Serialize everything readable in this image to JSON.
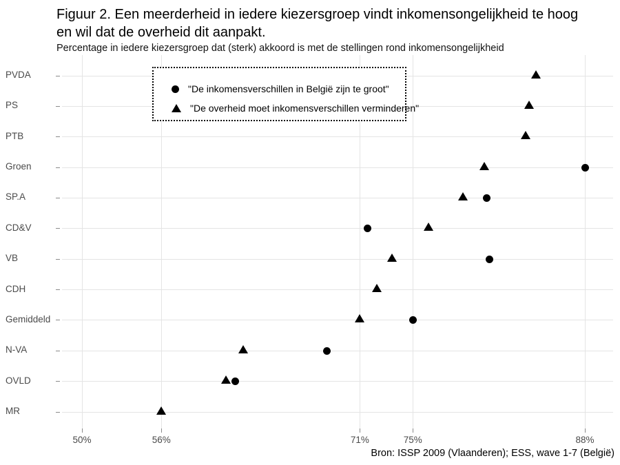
{
  "header": {
    "title_lines": [
      "Figuur 2. Een meerderheid in iedere kiezersgroep vindt inkomensongelijkheid te hoog",
      "en wil dat de overheid dit aanpakt."
    ],
    "subtitle": "Percentage in iedere kiezersgroep dat (sterk) akkoord is met de stellingen rond inkomensongelijkheid"
  },
  "legend": {
    "items": [
      {
        "marker": "circle",
        "label": "\"De inkomensverschillen in België zijn te groot\""
      },
      {
        "marker": "triangle",
        "label": "\"De overheid moet inkomensverschillen verminderen\""
      }
    ]
  },
  "footer": {
    "source": "Bron: ISSP 2009 (Vlaanderen); ESS, wave 1-7 (België)"
  },
  "colors": {
    "marker": "#000000",
    "gridline": "#e4e4e4",
    "axis_label": "#4a4a4a",
    "title": "#000000",
    "background": "#ffffff"
  },
  "chart_data": {
    "type": "scatter",
    "subtype": "horizontal-dot-plot",
    "title": "Figuur 2. Een meerderheid in iedere kiezersgroep vindt inkomensongelijkheid te hoog en wil dat de overheid dit aanpakt.",
    "subtitle": "Percentage in iedere kiezersgroep dat (sterk) akkoord is met de stellingen rond inkomensongelijkheid",
    "categories": [
      "PVDA",
      "PS",
      "PTB",
      "Groen",
      "SP.A",
      "CD&V",
      "VB",
      "CDH",
      "Gemiddeld",
      "N-VA",
      "OVLD",
      "MR"
    ],
    "series": [
      {
        "name": "\"De inkomensverschillen in België zijn te groot\"",
        "marker": "circle",
        "values": [
          null,
          null,
          null,
          88,
          80.6,
          71.6,
          80.8,
          null,
          75,
          68.5,
          61.6,
          null
        ]
      },
      {
        "name": "\"De overheid moet inkomensverschillen verminderen\"",
        "marker": "triangle",
        "values": [
          84.3,
          83.8,
          83.5,
          80.4,
          78.8,
          76.2,
          73.4,
          72.3,
          71,
          62.2,
          60.9,
          56
        ]
      }
    ],
    "x_ticks": [
      50,
      56,
      71,
      75,
      88
    ],
    "x_tick_labels": [
      "50%",
      "56%",
      "71%",
      "75%",
      "88%"
    ],
    "xlim": [
      48.5,
      90.1
    ],
    "xlabel": "",
    "ylabel": "",
    "grid": "horizontal line per category, vertical lines at labeled ticks only",
    "legend_position": "top-left inside plot, dotted border box",
    "source": "Bron: ISSP 2009 (Vlaanderen); ESS, wave 1-7 (België)"
  }
}
